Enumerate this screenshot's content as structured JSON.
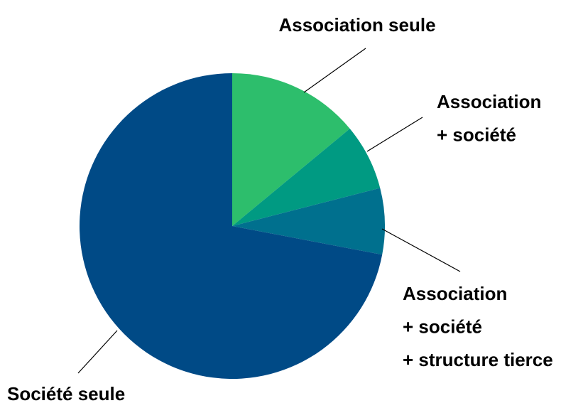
{
  "chart_data": {
    "type": "pie",
    "categories": [
      [
        "Association seule"
      ],
      [
        "Association",
        "+ société"
      ],
      [
        "Association",
        "+ société",
        "+ structure tierce"
      ],
      [
        "Société seule"
      ]
    ],
    "values": [
      14,
      7,
      7,
      72
    ],
    "colors": [
      "#2dbe6c",
      "#009a82",
      "#00708e",
      "#004a86"
    ]
  }
}
